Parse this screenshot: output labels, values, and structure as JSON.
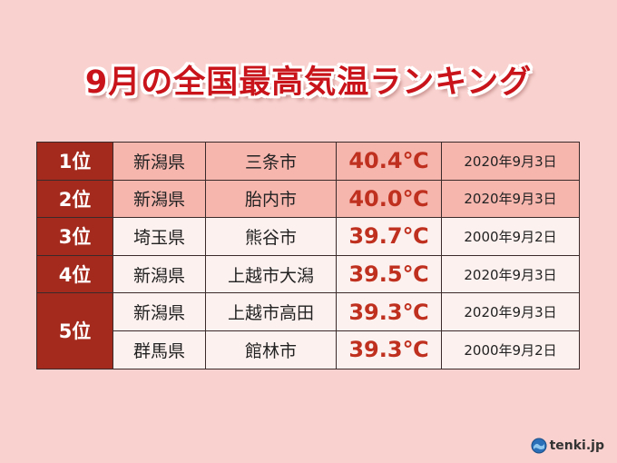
{
  "title": "9月の全国最高気温ランキング",
  "colors": {
    "background": "#f9d2cf",
    "title_text": "#c8141a",
    "rank_cell": "#a52a1e",
    "highlight_row": "#f6b6ae",
    "normal_row": "#fdf1ef",
    "temperature_text": "#c0301e"
  },
  "rows": [
    {
      "rank": "1位",
      "prefecture": "新潟県",
      "city": "三条市",
      "temp": "40.4℃",
      "date": "2020年9月3日"
    },
    {
      "rank": "2位",
      "prefecture": "新潟県",
      "city": "胎内市",
      "temp": "40.0℃",
      "date": "2020年9月3日"
    },
    {
      "rank": "3位",
      "prefecture": "埼玉県",
      "city": "熊谷市",
      "temp": "39.7℃",
      "date": "2000年9月2日"
    },
    {
      "rank": "4位",
      "prefecture": "新潟県",
      "city": "上越市大潟",
      "temp": "39.5℃",
      "date": "2020年9月3日"
    },
    {
      "rank": "5位",
      "prefecture": "新潟県",
      "city": "上越市高田",
      "temp": "39.3℃",
      "date": "2020年9月3日"
    },
    {
      "rank": "",
      "prefecture": "群馬県",
      "city": "館林市",
      "temp": "39.3℃",
      "date": "2000年9月2日"
    }
  ],
  "logo": {
    "text": "tenki.jp",
    "icon": "tenki-logo-icon"
  }
}
